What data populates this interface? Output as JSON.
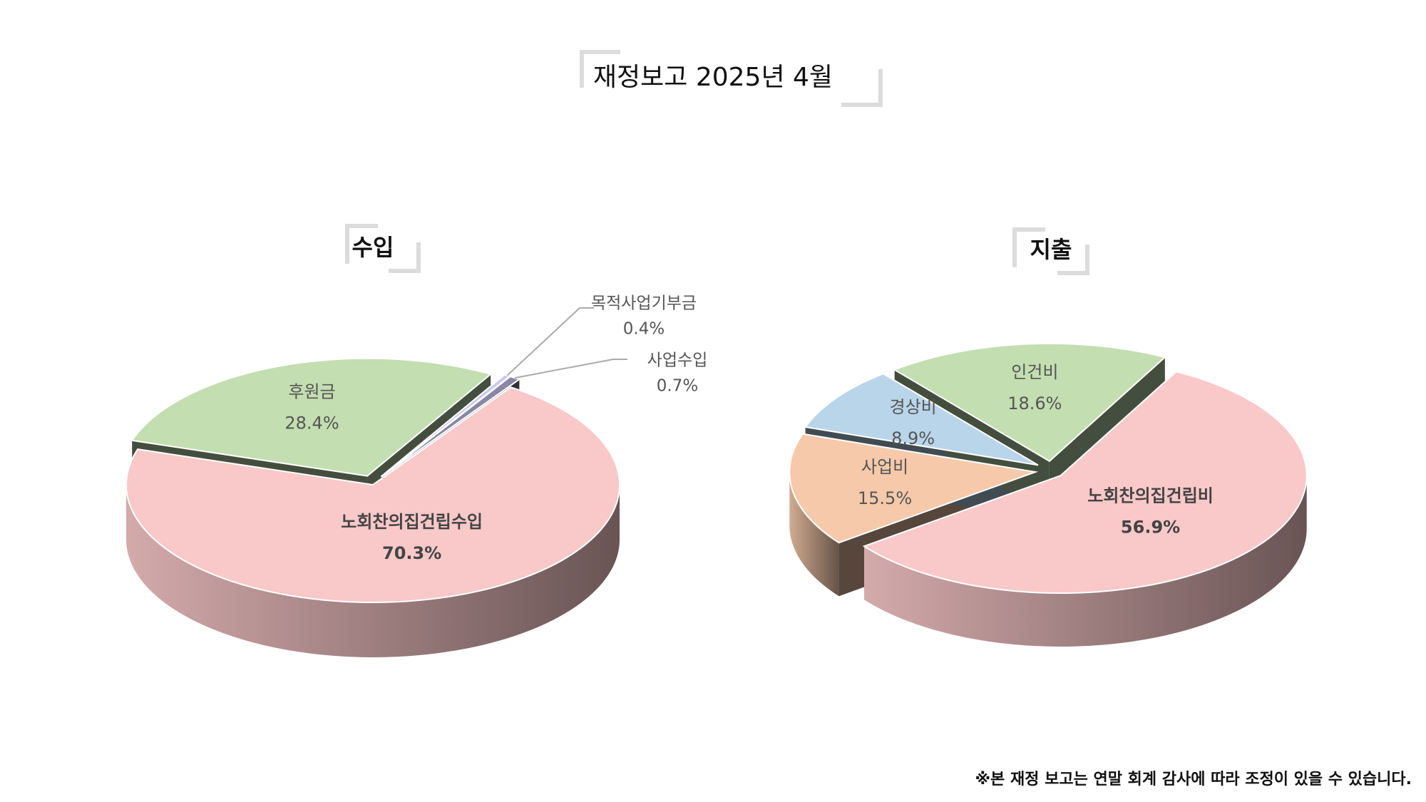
{
  "title": "재정보고 2025년 4월",
  "footnote": "※본 재정 보고는 연말 회계 감사에 따라 조정이 있을 수 있습니다.",
  "chart_data": [
    {
      "type": "pie",
      "title": "수입",
      "categories": [
        "노회찬의집건립수입",
        "후원금",
        "목적사업기부금",
        "사업수입"
      ],
      "values": [
        70.3,
        28.4,
        0.4,
        0.7
      ],
      "value_labels": [
        "70.3%",
        "28.4%",
        "0.4%",
        "0.7%"
      ],
      "colors": [
        "#f9c8c9",
        "#c3deb0",
        "#c8c8f0",
        "#8a86a6"
      ]
    },
    {
      "type": "pie",
      "title": "지출",
      "categories": [
        "노회찬의집건립비",
        "사업비",
        "경상비",
        "인건비"
      ],
      "values": [
        56.9,
        15.5,
        8.9,
        18.6
      ],
      "value_labels": [
        "56.9%",
        "15.5%",
        "8.9%",
        "18.6%"
      ],
      "colors": [
        "#f9c8c9",
        "#f5c9aa",
        "#b9d5ea",
        "#c3deb0"
      ]
    }
  ]
}
